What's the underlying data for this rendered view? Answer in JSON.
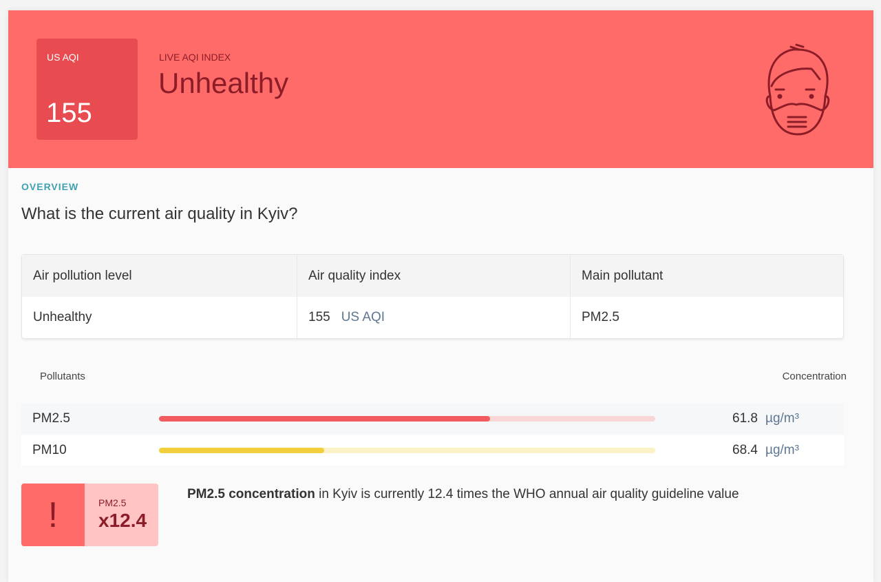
{
  "hero": {
    "aqi_label": "US AQI",
    "aqi_value": "155",
    "live_label": "LIVE AQI INDEX",
    "status": "Unhealthy",
    "icon": "masked-face-icon",
    "color": "#ff6b68"
  },
  "overview": {
    "label": "OVERVIEW",
    "question": "What is the current air quality in Kyiv?"
  },
  "table": {
    "headers": [
      "Air pollution level",
      "Air quality index",
      "Main pollutant"
    ],
    "level": "Unhealthy",
    "aqi": "155",
    "aqi_unit": "US AQI",
    "pollutant": "PM2.5"
  },
  "pollutants": {
    "header_left": "Pollutants",
    "header_right": "Concentration",
    "items": [
      {
        "name": "PM2.5",
        "value": "61.8",
        "unit": "µg/m³",
        "level": 0.667,
        "color": "#f25c5f",
        "track": "#fbd6d6"
      },
      {
        "name": "PM10",
        "value": "68.4",
        "unit": "µg/m³",
        "level": 0.333,
        "color": "#f2cf3c",
        "track": "#fcf2c8"
      }
    ]
  },
  "alert": {
    "icon": "exclamation-icon",
    "symbol": "!",
    "pollutant": "PM2.5",
    "multiplier": "x12.4",
    "message_bold": "PM2.5 concentration",
    "message_rest": " in Kyiv is currently 12.4 times the WHO annual air quality guideline value"
  }
}
